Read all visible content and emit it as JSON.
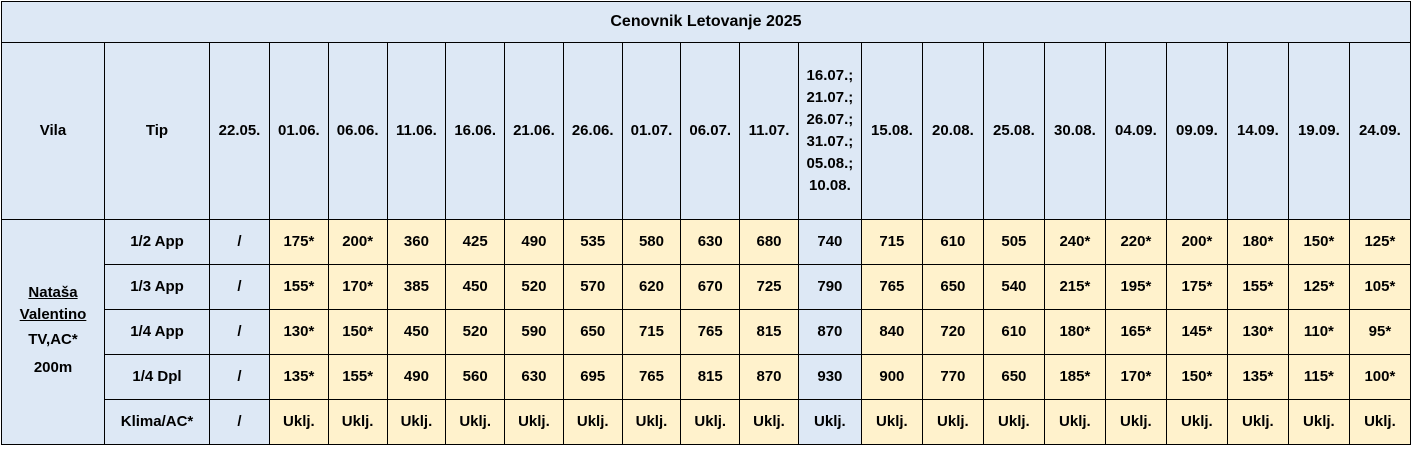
{
  "header": {
    "title": "Cenovnik Letovanje 2025"
  },
  "table": {
    "columns": [
      "Vila",
      "Tip",
      "22.05.",
      "01.06.",
      "06.06.",
      "11.06.",
      "16.06.",
      "21.06.",
      "26.06.",
      "01.07.",
      "06.07.",
      "11.07.",
      "16.07.;\n21.07.;\n26.07.;\n31.07.;\n05.08.;\n10.08.",
      "15.08.",
      "20.08.",
      "25.08.",
      "30.08.",
      "04.09.",
      "09.09.",
      "14.09.",
      "19.09.",
      "24.09."
    ],
    "villa": {
      "name": "Nataša Valentino",
      "features": "TV,AC*",
      "distance": "200m"
    },
    "rows": [
      [
        "1/2 App",
        "/",
        "175*",
        "200*",
        "360",
        "425",
        "490",
        "535",
        "580",
        "630",
        "680",
        "740",
        "715",
        "610",
        "505",
        "240*",
        "220*",
        "200*",
        "180*",
        "150*",
        "125*"
      ],
      [
        "1/3 App",
        "/",
        "155*",
        "170*",
        "385",
        "450",
        "520",
        "570",
        "620",
        "670",
        "725",
        "790",
        "765",
        "650",
        "540",
        "215*",
        "195*",
        "175*",
        "155*",
        "125*",
        "105*"
      ],
      [
        "1/4 App",
        "/",
        "130*",
        "150*",
        "450",
        "520",
        "590",
        "650",
        "715",
        "765",
        "815",
        "870",
        "840",
        "720",
        "610",
        "180*",
        "165*",
        "145*",
        "130*",
        "110*",
        "95*"
      ],
      [
        "1/4 Dpl",
        "/",
        "135*",
        "155*",
        "490",
        "560",
        "630",
        "695",
        "765",
        "815",
        "870",
        "930",
        "900",
        "770",
        "650",
        "185*",
        "170*",
        "150*",
        "135*",
        "115*",
        "100*"
      ],
      [
        "Klima/AC*",
        "/",
        "Uklj.",
        "Uklj.",
        "Uklj.",
        "Uklj.",
        "Uklj.",
        "Uklj.",
        "Uklj.",
        "Uklj.",
        "Uklj.",
        "Uklj.",
        "Uklj.",
        "Uklj.",
        "Uklj.",
        "Uklj.",
        "Uklj.",
        "Uklj.",
        "Uklj.",
        "Uklj.",
        "Uklj."
      ]
    ]
  }
}
